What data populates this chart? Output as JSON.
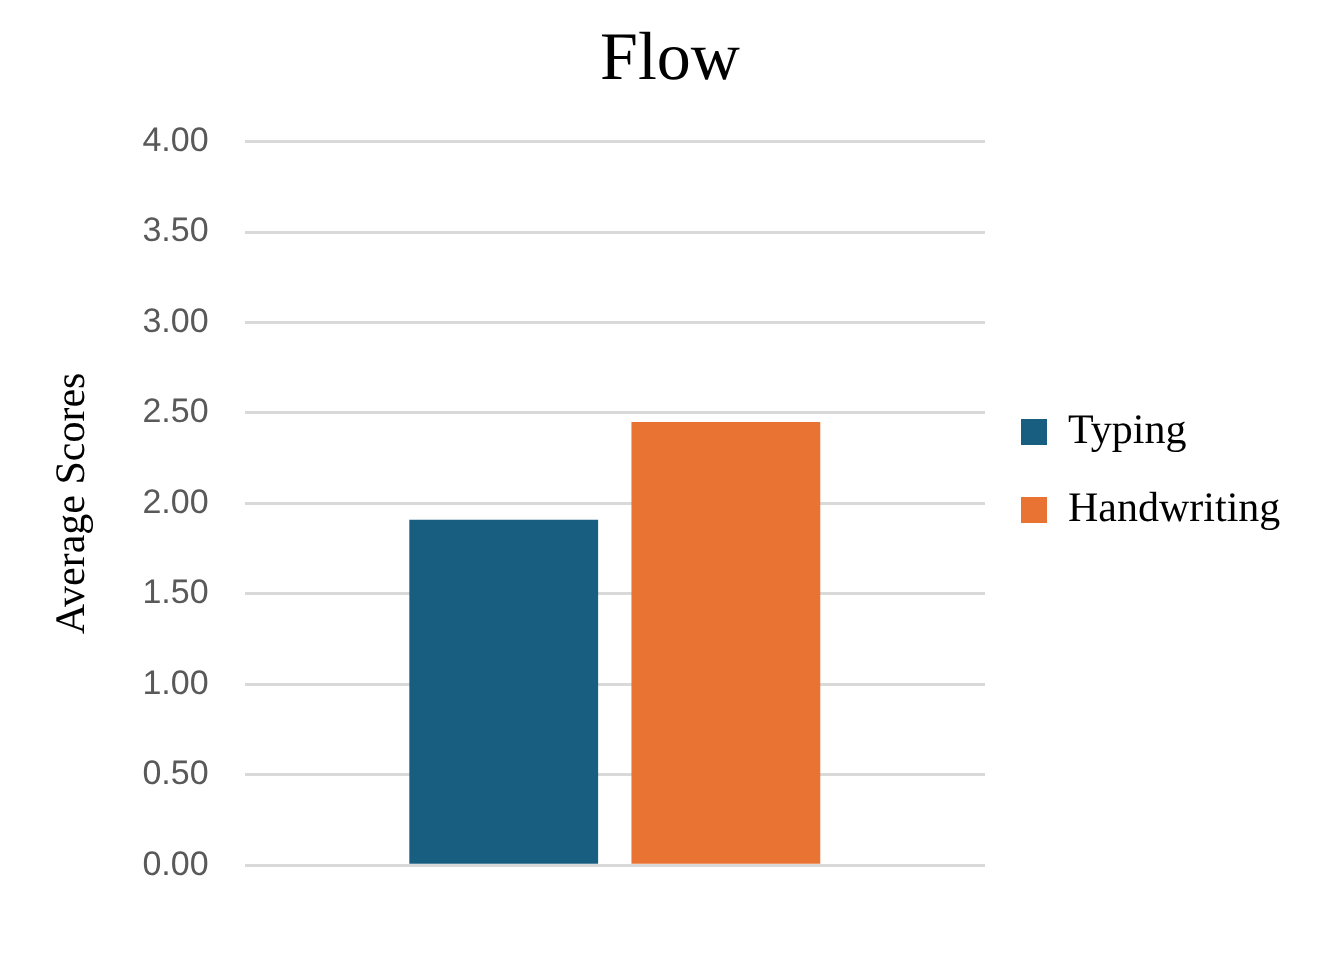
{
  "chart_data": {
    "type": "bar",
    "title": "Flow",
    "ylabel": "Average Scores",
    "categories": [
      null
    ],
    "series": [
      {
        "name": "Typing",
        "color": "#175e80",
        "values": [
          1.91
        ]
      },
      {
        "name": "Handwriting",
        "color": "#e97332",
        "values": [
          2.45
        ]
      }
    ],
    "ylim": [
      0,
      4
    ],
    "yticks": [
      {
        "value": 0,
        "label": "0.00"
      },
      {
        "value": 0.5,
        "label": "0.50"
      },
      {
        "value": 1,
        "label": "1.00"
      },
      {
        "value": 1.5,
        "label": "1.50"
      },
      {
        "value": 2,
        "label": "2.00"
      },
      {
        "value": 2.5,
        "label": "2.50"
      },
      {
        "value": 3,
        "label": "3.00"
      },
      {
        "value": 3.5,
        "label": "3.50"
      },
      {
        "value": 4,
        "label": "4.00"
      }
    ],
    "grid": "y",
    "legend": "right"
  }
}
